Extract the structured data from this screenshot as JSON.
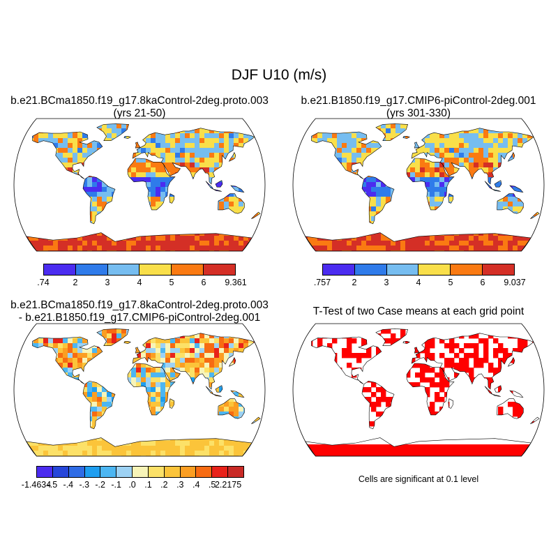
{
  "title": "DJF U10 (m/s)",
  "panels": [
    {
      "title_line1": "b.e21.BCma1850.f19_g17.8kaControl-2deg.proto.003",
      "title_line2": "(yrs 21-50)",
      "colorbar": {
        "colors": [
          "#4b2cf0",
          "#2f7bea",
          "#76bdf0",
          "#f9df4a",
          "#fa7a12",
          "#d42f26"
        ],
        "labels": [
          ".74",
          "2",
          "3",
          "4",
          "5",
          "6",
          "9.361"
        ]
      }
    },
    {
      "title_line1": "b.e21.B1850.f19_g17.CMIP6-piControl-2deg.001",
      "title_line2": "(yrs 301-330)",
      "colorbar": {
        "colors": [
          "#4b2cf0",
          "#2f7bea",
          "#76bdf0",
          "#f9df4a",
          "#fa7a12",
          "#d42f26"
        ],
        "labels": [
          ".757",
          "2",
          "3",
          "4",
          "5",
          "6",
          "9.037"
        ]
      }
    },
    {
      "title_line1": "b.e21.BCma1850.f19_g17.8kaControl-2deg.proto.003",
      "title_line2": "- b.e21.B1850.f19_g17.CMIP6-piControl-2deg.001",
      "colorbar": {
        "colors": [
          "#4b2cf0",
          "#2646da",
          "#2f6ce6",
          "#1e9ef0",
          "#4cb6f2",
          "#9dd2f4",
          "#f7f4b8",
          "#fce168",
          "#fbc43a",
          "#fb9e22",
          "#f76b12",
          "#e8221a",
          "#c92a26"
        ],
        "labels": [
          "-1.4634",
          "-.5",
          "-.4",
          "-.3",
          "-.2",
          "-.1",
          ".0",
          ".1",
          ".2",
          ".3",
          ".4",
          ".5",
          "2.2175"
        ]
      }
    },
    {
      "title_line1": "T-Test of two Case means at each grid point",
      "note": "Cells are significant at 0.1 level"
    }
  ],
  "colors": {
    "significant": "#ff0000",
    "coast": "#000000",
    "land_high": "#d42f26",
    "land_mid": "#f9df4a",
    "land_low": "#4b2cf0"
  }
}
